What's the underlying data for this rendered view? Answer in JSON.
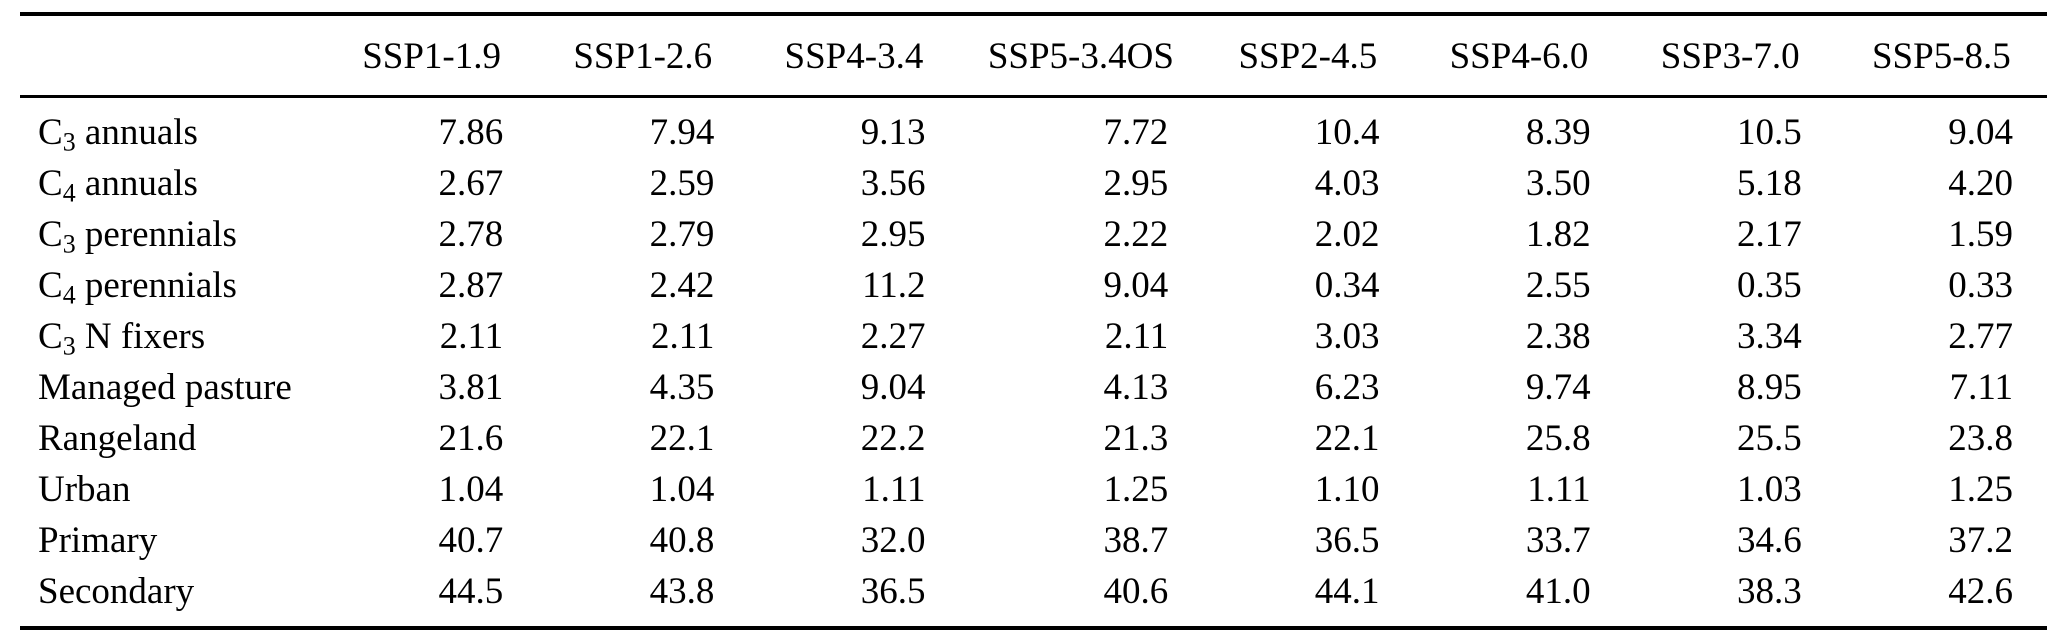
{
  "table": {
    "columns": [
      "SSP1-1.9",
      "SSP1-2.6",
      "SSP4-3.4",
      "SSP5-3.4OS",
      "SSP2-4.5",
      "SSP4-6.0",
      "SSP3-7.0",
      "SSP5-8.5"
    ],
    "rows": [
      {
        "label": {
          "pre": "C",
          "sub": "3",
          "post": " annuals"
        },
        "values": [
          "7.86",
          "7.94",
          "9.13",
          "7.72",
          "10.4",
          "8.39",
          "10.5",
          "9.04"
        ]
      },
      {
        "label": {
          "pre": "C",
          "sub": "4",
          "post": " annuals"
        },
        "values": [
          "2.67",
          "2.59",
          "3.56",
          "2.95",
          "4.03",
          "3.50",
          "5.18",
          "4.20"
        ]
      },
      {
        "label": {
          "pre": "C",
          "sub": "3",
          "post": " perennials"
        },
        "values": [
          "2.78",
          "2.79",
          "2.95",
          "2.22",
          "2.02",
          "1.82",
          "2.17",
          "1.59"
        ]
      },
      {
        "label": {
          "pre": "C",
          "sub": "4",
          "post": " perennials"
        },
        "values": [
          "2.87",
          "2.42",
          "11.2",
          "9.04",
          "0.34",
          "2.55",
          "0.35",
          "0.33"
        ]
      },
      {
        "label": {
          "pre": "C",
          "sub": "3",
          "post": " N fixers"
        },
        "values": [
          "2.11",
          "2.11",
          "2.27",
          "2.11",
          "3.03",
          "2.38",
          "3.34",
          "2.77"
        ]
      },
      {
        "label": {
          "pre": "Managed pasture",
          "sub": "",
          "post": ""
        },
        "values": [
          "3.81",
          "4.35",
          "9.04",
          "4.13",
          "6.23",
          "9.74",
          "8.95",
          "7.11"
        ]
      },
      {
        "label": {
          "pre": "Rangeland",
          "sub": "",
          "post": ""
        },
        "values": [
          "21.6",
          "22.1",
          "22.2",
          "21.3",
          "22.1",
          "25.8",
          "25.5",
          "23.8"
        ]
      },
      {
        "label": {
          "pre": "Urban",
          "sub": "",
          "post": ""
        },
        "values": [
          "1.04",
          "1.04",
          "1.11",
          "1.25",
          "1.10",
          "1.11",
          "1.03",
          "1.25"
        ]
      },
      {
        "label": {
          "pre": "Primary",
          "sub": "",
          "post": ""
        },
        "values": [
          "40.7",
          "40.8",
          "32.0",
          "38.7",
          "36.5",
          "33.7",
          "34.6",
          "37.2"
        ]
      },
      {
        "label": {
          "pre": "Secondary",
          "sub": "",
          "post": ""
        },
        "values": [
          "44.5",
          "43.8",
          "36.5",
          "40.6",
          "44.1",
          "41.0",
          "38.3",
          "42.6"
        ]
      }
    ]
  }
}
